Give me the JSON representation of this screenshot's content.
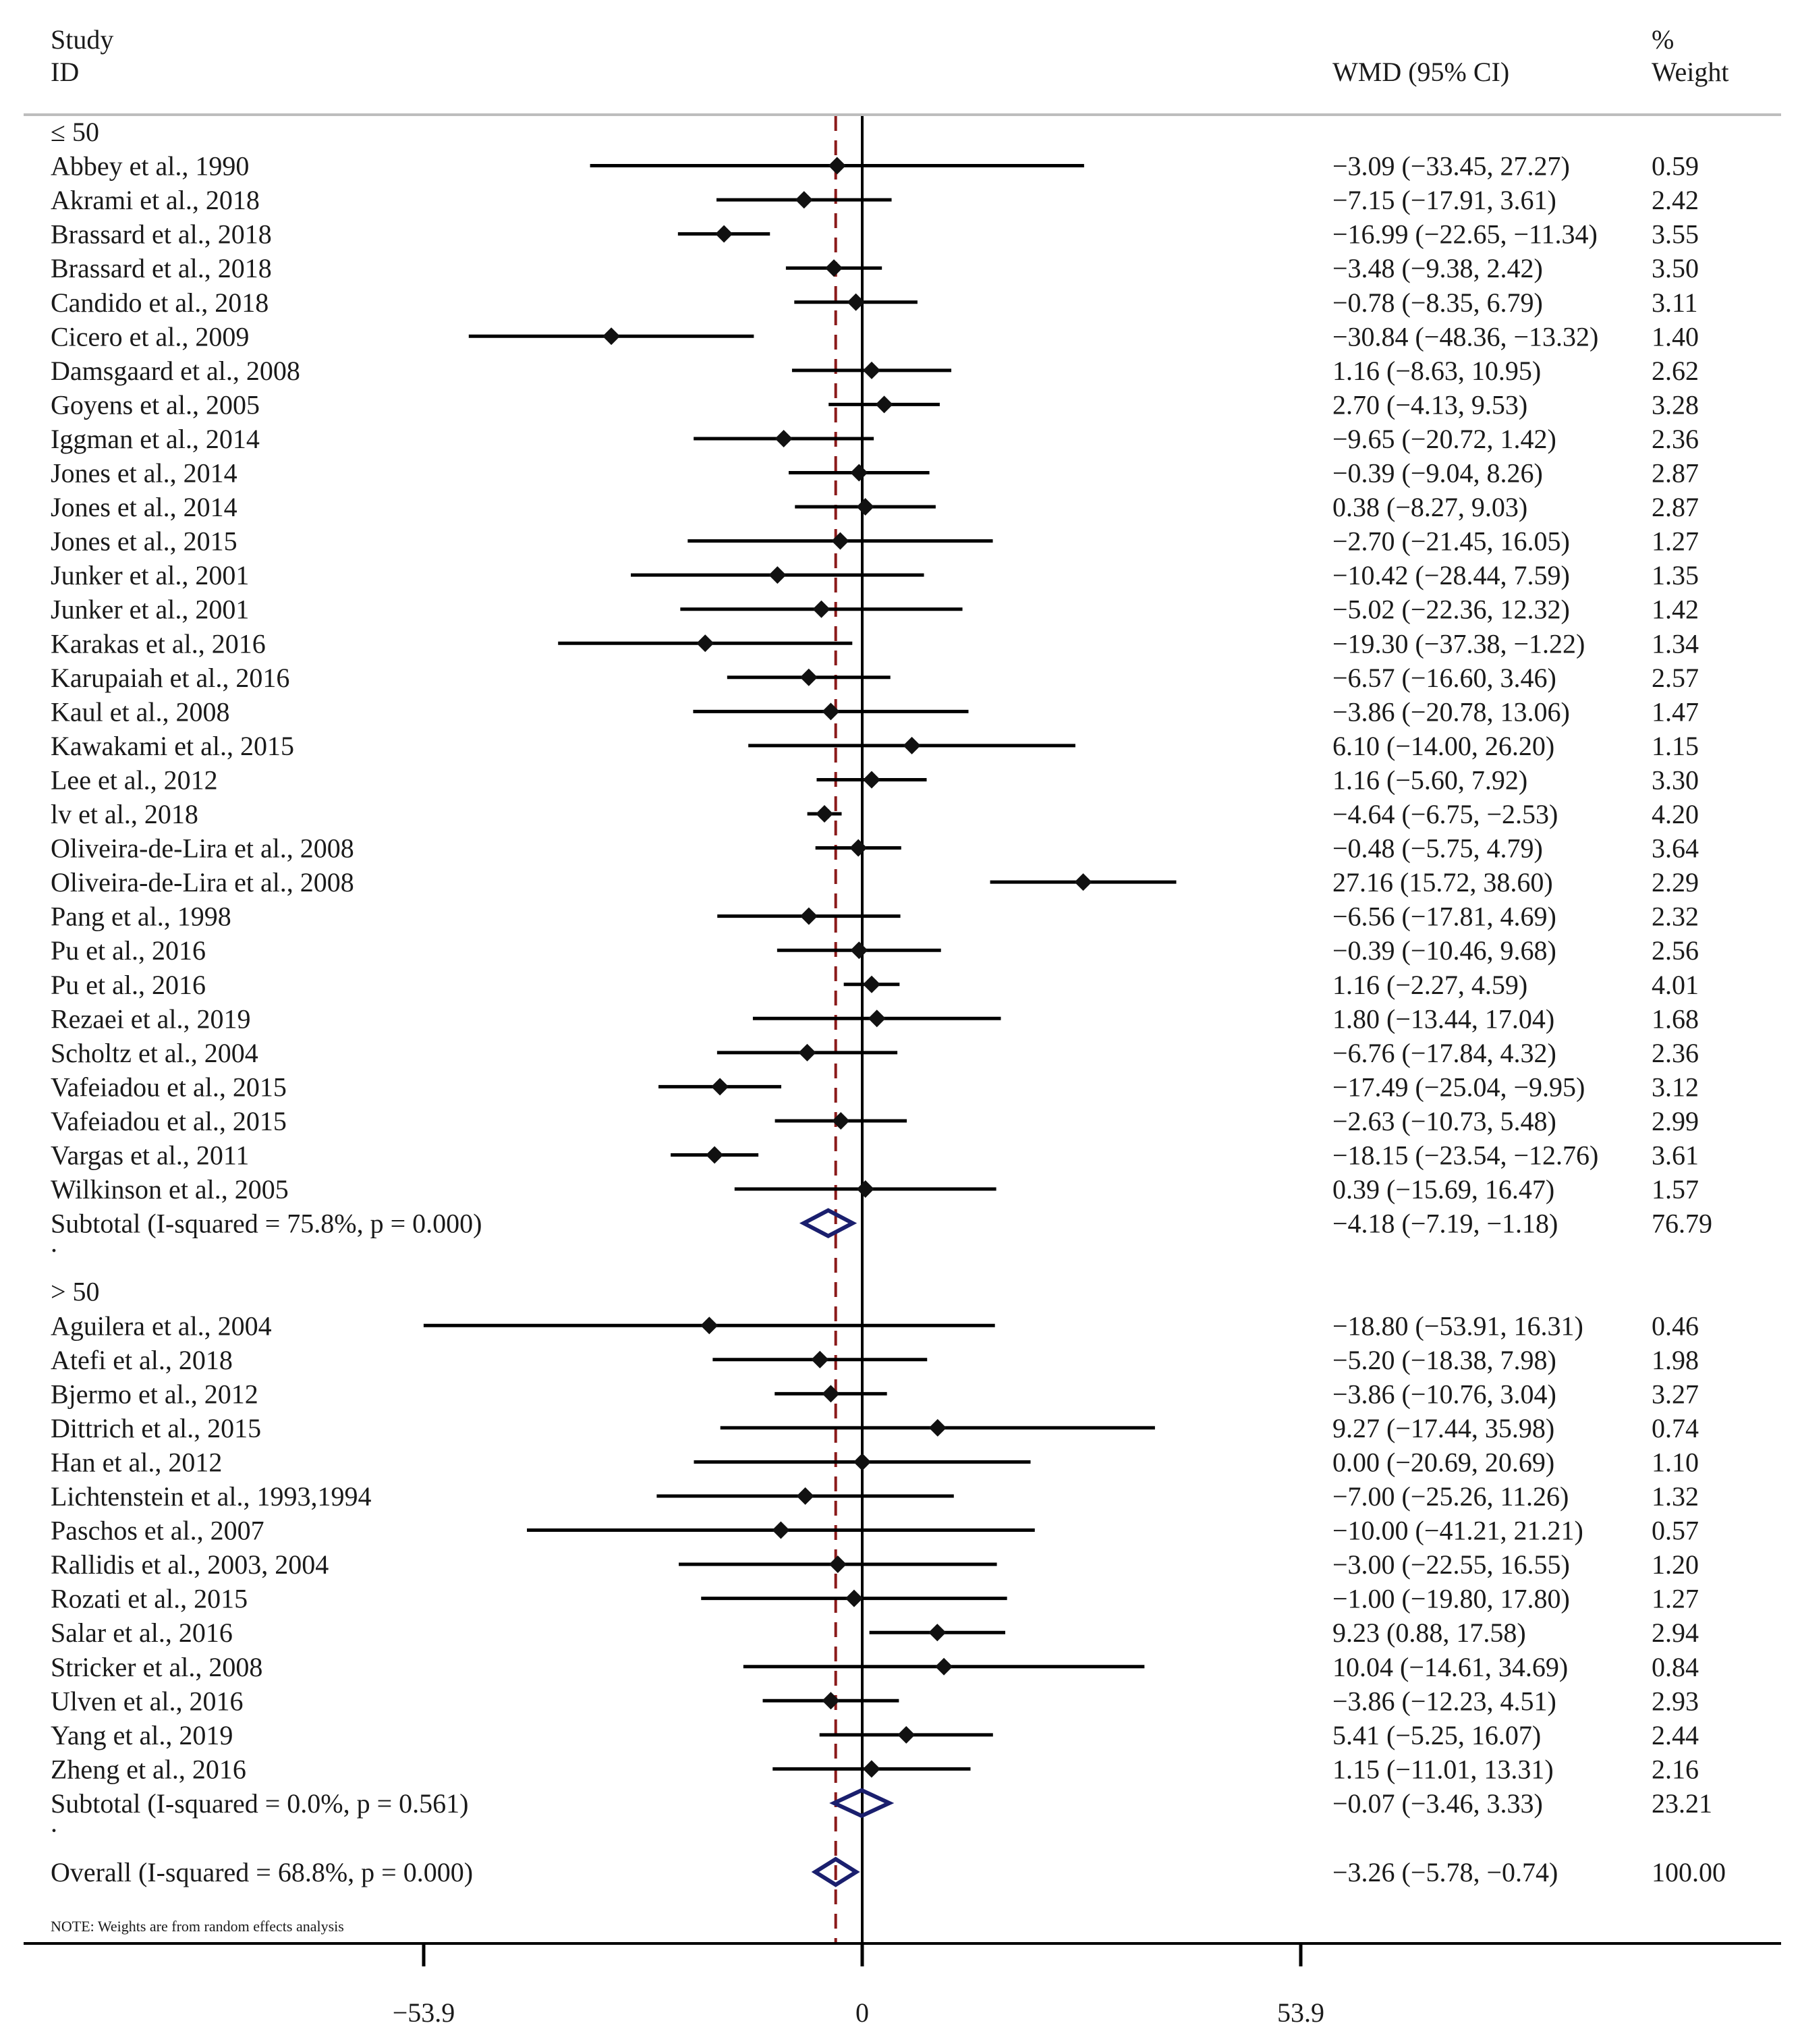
{
  "chart_data": {
    "type": "forest",
    "header": {
      "study_line1": "Study",
      "study_line2": "ID",
      "effect": "WMD (95% CI)",
      "weight_line1": "%",
      "weight_line2": "Weight"
    },
    "x_axis": {
      "range": [
        -53.9,
        53.9
      ],
      "ticks": [
        {
          "value": -53.9,
          "label": "−53.9"
        },
        {
          "value": 0,
          "label": "0"
        },
        {
          "value": 53.9,
          "label": "53.9"
        }
      ],
      "overall_reference": -3.26
    },
    "groups": [
      {
        "title": "≤ 50",
        "studies": [
          {
            "name": "Abbey et al., 1990",
            "wmd": -3.09,
            "lo": -33.45,
            "hi": 27.27,
            "ci_text": "−3.09 (−33.45, 27.27)",
            "weight": "0.59"
          },
          {
            "name": "Akrami et al., 2018",
            "wmd": -7.15,
            "lo": -17.91,
            "hi": 3.61,
            "ci_text": "−7.15 (−17.91, 3.61)",
            "weight": "2.42"
          },
          {
            "name": "Brassard et al., 2018",
            "wmd": -16.99,
            "lo": -22.65,
            "hi": -11.34,
            "ci_text": "−16.99 (−22.65, −11.34)",
            "weight": "3.55"
          },
          {
            "name": "Brassard et al., 2018",
            "wmd": -3.48,
            "lo": -9.38,
            "hi": 2.42,
            "ci_text": "−3.48 (−9.38, 2.42)",
            "weight": "3.50"
          },
          {
            "name": "Candido et al., 2018",
            "wmd": -0.78,
            "lo": -8.35,
            "hi": 6.79,
            "ci_text": "−0.78 (−8.35, 6.79)",
            "weight": "3.11"
          },
          {
            "name": "Cicero et al., 2009",
            "wmd": -30.84,
            "lo": -48.36,
            "hi": -13.32,
            "ci_text": "−30.84 (−48.36, −13.32)",
            "weight": "1.40"
          },
          {
            "name": "Damsgaard et al., 2008",
            "wmd": 1.16,
            "lo": -8.63,
            "hi": 10.95,
            "ci_text": "1.16 (−8.63, 10.95)",
            "weight": "2.62"
          },
          {
            "name": "Goyens et al., 2005",
            "wmd": 2.7,
            "lo": -4.13,
            "hi": 9.53,
            "ci_text": "2.70 (−4.13, 9.53)",
            "weight": "3.28"
          },
          {
            "name": "Iggman et al., 2014",
            "wmd": -9.65,
            "lo": -20.72,
            "hi": 1.42,
            "ci_text": "−9.65 (−20.72, 1.42)",
            "weight": "2.36"
          },
          {
            "name": "Jones et al., 2014",
            "wmd": -0.39,
            "lo": -9.04,
            "hi": 8.26,
            "ci_text": "−0.39 (−9.04, 8.26)",
            "weight": "2.87"
          },
          {
            "name": "Jones et al., 2014",
            "wmd": 0.38,
            "lo": -8.27,
            "hi": 9.03,
            "ci_text": "0.38 (−8.27, 9.03)",
            "weight": "2.87"
          },
          {
            "name": "Jones et al., 2015",
            "wmd": -2.7,
            "lo": -21.45,
            "hi": 16.05,
            "ci_text": "−2.70 (−21.45, 16.05)",
            "weight": "1.27"
          },
          {
            "name": "Junker et al., 2001",
            "wmd": -10.42,
            "lo": -28.44,
            "hi": 7.59,
            "ci_text": "−10.42 (−28.44, 7.59)",
            "weight": "1.35"
          },
          {
            "name": "Junker et al., 2001",
            "wmd": -5.02,
            "lo": -22.36,
            "hi": 12.32,
            "ci_text": "−5.02 (−22.36, 12.32)",
            "weight": "1.42"
          },
          {
            "name": "Karakas et al., 2016",
            "wmd": -19.3,
            "lo": -37.38,
            "hi": -1.22,
            "ci_text": "−19.30 (−37.38, −1.22)",
            "weight": "1.34"
          },
          {
            "name": "Karupaiah et al., 2016",
            "wmd": -6.57,
            "lo": -16.6,
            "hi": 3.46,
            "ci_text": "−6.57 (−16.60, 3.46)",
            "weight": "2.57"
          },
          {
            "name": "Kaul et al., 2008",
            "wmd": -3.86,
            "lo": -20.78,
            "hi": 13.06,
            "ci_text": "−3.86 (−20.78, 13.06)",
            "weight": "1.47"
          },
          {
            "name": "Kawakami et al., 2015",
            "wmd": 6.1,
            "lo": -14.0,
            "hi": 26.2,
            "ci_text": "6.10 (−14.00, 26.20)",
            "weight": "1.15"
          },
          {
            "name": "Lee et al., 2012",
            "wmd": 1.16,
            "lo": -5.6,
            "hi": 7.92,
            "ci_text": "1.16 (−5.60, 7.92)",
            "weight": "3.30"
          },
          {
            "name": "lv et al., 2018",
            "wmd": -4.64,
            "lo": -6.75,
            "hi": -2.53,
            "ci_text": "−4.64 (−6.75, −2.53)",
            "weight": "4.20"
          },
          {
            "name": "Oliveira-de-Lira et al., 2008",
            "wmd": -0.48,
            "lo": -5.75,
            "hi": 4.79,
            "ci_text": "−0.48 (−5.75, 4.79)",
            "weight": "3.64"
          },
          {
            "name": "Oliveira-de-Lira et al., 2008",
            "wmd": 27.16,
            "lo": 15.72,
            "hi": 38.6,
            "ci_text": "27.16 (15.72, 38.60)",
            "weight": "2.29"
          },
          {
            "name": "Pang et al., 1998",
            "wmd": -6.56,
            "lo": -17.81,
            "hi": 4.69,
            "ci_text": "−6.56 (−17.81, 4.69)",
            "weight": "2.32"
          },
          {
            "name": "Pu et al., 2016",
            "wmd": -0.39,
            "lo": -10.46,
            "hi": 9.68,
            "ci_text": "−0.39 (−10.46, 9.68)",
            "weight": "2.56"
          },
          {
            "name": "Pu et al., 2016",
            "wmd": 1.16,
            "lo": -2.27,
            "hi": 4.59,
            "ci_text": "1.16 (−2.27, 4.59)",
            "weight": "4.01"
          },
          {
            "name": "Rezaei et al., 2019",
            "wmd": 1.8,
            "lo": -13.44,
            "hi": 17.04,
            "ci_text": "1.80 (−13.44, 17.04)",
            "weight": "1.68"
          },
          {
            "name": "Scholtz et al., 2004",
            "wmd": -6.76,
            "lo": -17.84,
            "hi": 4.32,
            "ci_text": "−6.76 (−17.84, 4.32)",
            "weight": "2.36"
          },
          {
            "name": "Vafeiadou et al., 2015",
            "wmd": -17.49,
            "lo": -25.04,
            "hi": -9.95,
            "ci_text": "−17.49 (−25.04, −9.95)",
            "weight": "3.12"
          },
          {
            "name": "Vafeiadou et al., 2015",
            "wmd": -2.63,
            "lo": -10.73,
            "hi": 5.48,
            "ci_text": "−2.63 (−10.73, 5.48)",
            "weight": "2.99"
          },
          {
            "name": "Vargas et al., 2011",
            "wmd": -18.15,
            "lo": -23.54,
            "hi": -12.76,
            "ci_text": "−18.15 (−23.54, −12.76)",
            "weight": "3.61"
          },
          {
            "name": "Wilkinson et al., 2005",
            "wmd": 0.39,
            "lo": -15.69,
            "hi": 16.47,
            "ci_text": "0.39 (−15.69, 16.47)",
            "weight": "1.57"
          }
        ],
        "subtotal": {
          "label": "Subtotal  (I-squared = 75.8%, p = 0.000)",
          "wmd": -4.18,
          "lo": -7.19,
          "hi": -1.18,
          "ci_text": "−4.18 (−7.19, −1.18)",
          "weight": "76.79"
        }
      },
      {
        "title": "> 50",
        "studies": [
          {
            "name": "Aguilera et al., 2004",
            "wmd": -18.8,
            "lo": -53.91,
            "hi": 16.31,
            "ci_text": "−18.80 (−53.91, 16.31)",
            "weight": "0.46"
          },
          {
            "name": "Atefi et al., 2018",
            "wmd": -5.2,
            "lo": -18.38,
            "hi": 7.98,
            "ci_text": "−5.20 (−18.38, 7.98)",
            "weight": "1.98"
          },
          {
            "name": "Bjermo et al., 2012",
            "wmd": -3.86,
            "lo": -10.76,
            "hi": 3.04,
            "ci_text": "−3.86 (−10.76, 3.04)",
            "weight": "3.27"
          },
          {
            "name": "Dittrich et al., 2015",
            "wmd": 9.27,
            "lo": -17.44,
            "hi": 35.98,
            "ci_text": "9.27 (−17.44, 35.98)",
            "weight": "0.74"
          },
          {
            "name": "Han et al., 2012",
            "wmd": 0.0,
            "lo": -20.69,
            "hi": 20.69,
            "ci_text": "0.00 (−20.69, 20.69)",
            "weight": "1.10"
          },
          {
            "name": "Lichtenstein et al., 1993,1994",
            "wmd": -7.0,
            "lo": -25.26,
            "hi": 11.26,
            "ci_text": "−7.00 (−25.26, 11.26)",
            "weight": "1.32"
          },
          {
            "name": "Paschos et al., 2007",
            "wmd": -10.0,
            "lo": -41.21,
            "hi": 21.21,
            "ci_text": "−10.00 (−41.21, 21.21)",
            "weight": "0.57"
          },
          {
            "name": "Rallidis et al., 2003, 2004",
            "wmd": -3.0,
            "lo": -22.55,
            "hi": 16.55,
            "ci_text": "−3.00 (−22.55, 16.55)",
            "weight": "1.20"
          },
          {
            "name": "Rozati et al., 2015",
            "wmd": -1.0,
            "lo": -19.8,
            "hi": 17.8,
            "ci_text": "−1.00 (−19.80, 17.80)",
            "weight": "1.27"
          },
          {
            "name": "Salar et al., 2016",
            "wmd": 9.23,
            "lo": 0.88,
            "hi": 17.58,
            "ci_text": "9.23 (0.88, 17.58)",
            "weight": "2.94"
          },
          {
            "name": "Stricker et al., 2008",
            "wmd": 10.04,
            "lo": -14.61,
            "hi": 34.69,
            "ci_text": "10.04 (−14.61, 34.69)",
            "weight": "0.84"
          },
          {
            "name": "Ulven et al., 2016",
            "wmd": -3.86,
            "lo": -12.23,
            "hi": 4.51,
            "ci_text": "−3.86 (−12.23, 4.51)",
            "weight": "2.93"
          },
          {
            "name": "Yang et al., 2019",
            "wmd": 5.41,
            "lo": -5.25,
            "hi": 16.07,
            "ci_text": "5.41 (−5.25, 16.07)",
            "weight": "2.44"
          },
          {
            "name": "Zheng et al., 2016",
            "wmd": 1.15,
            "lo": -11.01,
            "hi": 13.31,
            "ci_text": "1.15 (−11.01, 13.31)",
            "weight": "2.16"
          }
        ],
        "subtotal": {
          "label": "Subtotal  (I-squared = 0.0%, p = 0.561)",
          "wmd": -0.07,
          "lo": -3.46,
          "hi": 3.33,
          "ci_text": "−0.07 (−3.46, 3.33)",
          "weight": "23.21"
        }
      }
    ],
    "overall": {
      "label": "Overall  (I-squared = 68.8%, p = 0.000)",
      "wmd": -3.26,
      "lo": -5.78,
      "hi": -0.74,
      "ci_text": "−3.26 (−5.78, −0.74)",
      "weight": "100.00"
    },
    "note": "NOTE: Weights are from random effects analysis",
    "colors": {
      "box": "#b3b3b3",
      "line": "#000000",
      "diamond": "#1a1f6e",
      "reference": "#8b1a1a"
    }
  }
}
